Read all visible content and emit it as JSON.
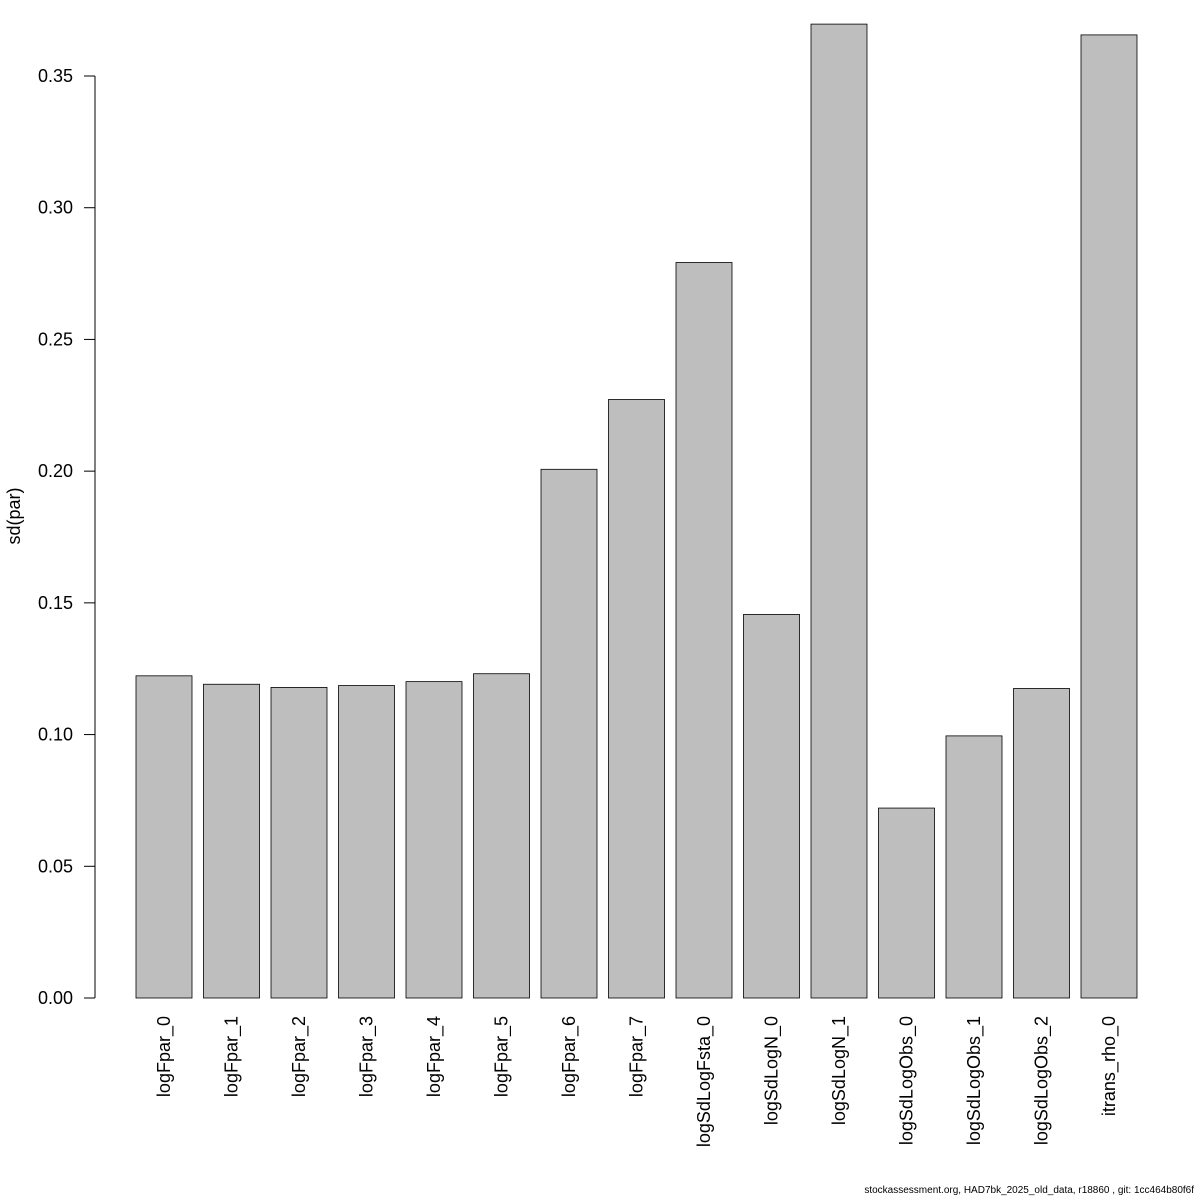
{
  "chart_data": {
    "type": "bar",
    "title": "",
    "xlabel": "",
    "ylabel": "sd(par)",
    "ylim": [
      0,
      0.37
    ],
    "yticks": [
      0.0,
      0.05,
      0.1,
      0.15,
      0.2,
      0.25,
      0.3,
      0.35
    ],
    "ytick_labels": [
      "0.00",
      "0.05",
      "0.10",
      "0.15",
      "0.20",
      "0.25",
      "0.30",
      "0.35"
    ],
    "categories": [
      "logFpar_0",
      "logFpar_1",
      "logFpar_2",
      "logFpar_3",
      "logFpar_4",
      "logFpar_5",
      "logFpar_6",
      "logFpar_7",
      "logSdLogFsta_0",
      "logSdLogN_0",
      "logSdLogN_1",
      "logSdLogObs_0",
      "logSdLogObs_1",
      "logSdLogObs_2",
      "itrans_rho_0"
    ],
    "values": [
      0.1223,
      0.1191,
      0.1179,
      0.1186,
      0.1201,
      0.1231,
      0.2007,
      0.2272,
      0.2792,
      0.1456,
      0.3697,
      0.0721,
      0.0995,
      0.1175,
      0.3656
    ],
    "bar_color": "#bebebe",
    "grid": false,
    "legend": "none"
  },
  "footer": "stockassessment.org, HAD7bk_2025_old_data, r18860 , git: 1cc464b80f6f"
}
